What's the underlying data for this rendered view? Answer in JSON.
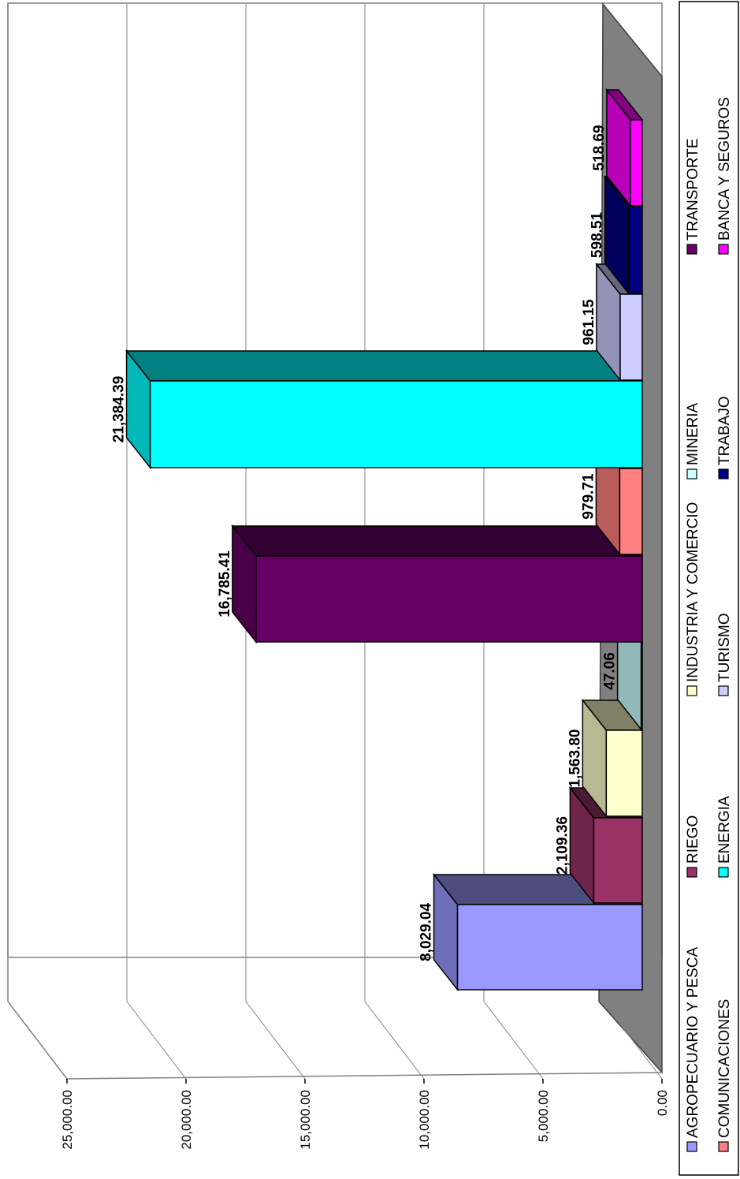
{
  "chart_data": {
    "type": "bar",
    "title": "",
    "xlabel": "",
    "ylabel": "",
    "ylim": [
      0,
      25000
    ],
    "y_ticks": [
      "0.00",
      "5,000.00",
      "10,000.00",
      "15,000.00",
      "20,000.00",
      "25,000.00"
    ],
    "grid": true,
    "three_d": true,
    "orientation": "rotated",
    "legend_position": "right",
    "categories": [
      "AGROPECUARIO Y PESCA",
      "RIEGO",
      "INDUSTRIA Y COMERCIO",
      "MINERIA",
      "TRANSPORTE",
      "COMUNICACIONES",
      "ENERGIA",
      "TURISMO",
      "TRABAJO",
      "BANCA Y SEGUROS"
    ],
    "values": [
      8029.04,
      2109.36,
      1563.8,
      47.06,
      16785.41,
      979.71,
      21384.39,
      961.15,
      598.51,
      518.69
    ],
    "value_labels": [
      "8,029.04",
      "2,109.36",
      "1,563.80",
      "47.06",
      "16,785.41",
      "979.71",
      "21,384.39",
      "961.15",
      "598.51",
      "518.69"
    ],
    "series_colors": [
      "#9999FF",
      "#993366",
      "#FFFFCC",
      "#CCFFFF",
      "#660066",
      "#FF8080",
      "#00FFFF",
      "#CCCCFF",
      "#000080",
      "#FF00FF"
    ]
  }
}
